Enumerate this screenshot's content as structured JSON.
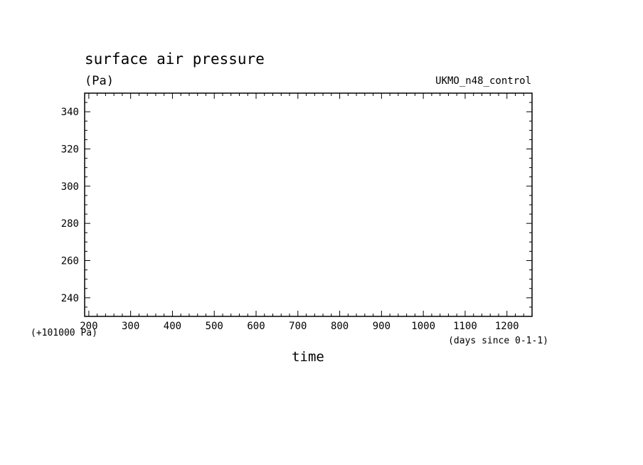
{
  "chart_data": {
    "type": "line",
    "title": "surface air pressure",
    "units": "(Pa)",
    "dataset_label": "UKMO_n48_control",
    "xlabel": "time",
    "x_unit_note": "(days since 0-1-1)",
    "y_offset_note": "(+101000 Pa)",
    "xlim": [
      190,
      1260
    ],
    "ylim": [
      230,
      350
    ],
    "x_major_ticks": [
      200,
      300,
      400,
      500,
      600,
      700,
      800,
      900,
      1000,
      1100,
      1200
    ],
    "x_minor_step": 20,
    "y_major_ticks": [
      240,
      260,
      280,
      300,
      320,
      340
    ],
    "y_minor_step": 5,
    "grid": false,
    "series": []
  }
}
